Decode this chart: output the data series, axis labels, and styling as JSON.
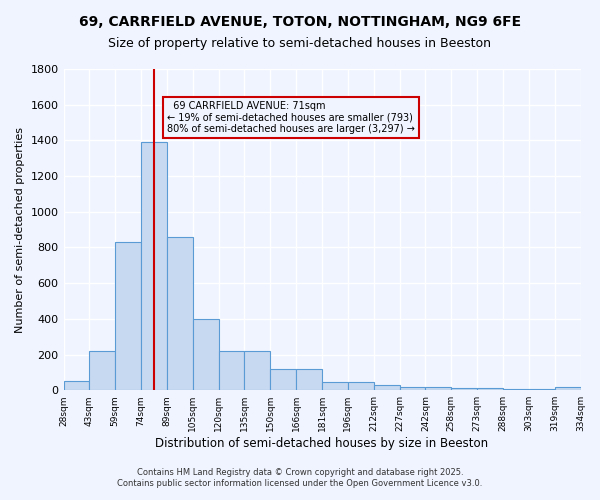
{
  "title": "69, CARRFIELD AVENUE, TOTON, NOTTINGHAM, NG9 6FE",
  "subtitle": "Size of property relative to semi-detached houses in Beeston",
  "xlabel": "Distribution of semi-detached houses by size in Beeston",
  "ylabel": "Number of semi-detached properties",
  "bar_values": [
    50,
    220,
    830,
    1390,
    860,
    400,
    220,
    220,
    120,
    120,
    45,
    45,
    30,
    20,
    20,
    15,
    15,
    5,
    5,
    20
  ],
  "bar_labels": [
    "28sqm",
    "43sqm",
    "59sqm",
    "74sqm",
    "89sqm",
    "105sqm",
    "120sqm",
    "135sqm",
    "150sqm",
    "166sqm",
    "181sqm",
    "196sqm",
    "212sqm",
    "227sqm",
    "242sqm",
    "258sqm",
    "273sqm",
    "288sqm",
    "303sqm",
    "319sqm",
    "334sqm"
  ],
  "bar_color": "#c7d9f0",
  "bar_edgecolor": "#5b9bd5",
  "property_line_index": 3,
  "property_label": "69 CARRFIELD AVENUE: 71sqm",
  "smaller_pct": "19%",
  "smaller_count": "793",
  "larger_pct": "80%",
  "larger_count": "3,297",
  "annotation_box_edgecolor": "#cc0000",
  "redline_color": "#cc0000",
  "ylim": [
    0,
    1800
  ],
  "yticks": [
    0,
    200,
    400,
    600,
    800,
    1000,
    1200,
    1400,
    1600,
    1800
  ],
  "background_color": "#f0f4ff",
  "grid_color": "#ffffff",
  "footer_line1": "Contains HM Land Registry data © Crown copyright and database right 2025.",
  "footer_line2": "Contains public sector information licensed under the Open Government Licence v3.0."
}
